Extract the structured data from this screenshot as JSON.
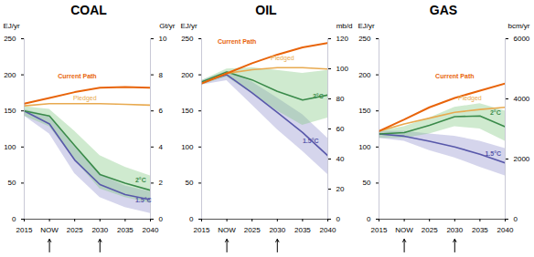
{
  "chart_data": [
    {
      "type": "line",
      "title": "COAL",
      "x": [
        2015,
        2020,
        2025,
        2030,
        2035,
        2040
      ],
      "xlim": [
        2015,
        2040
      ],
      "xticks": [
        2015,
        {
          "value": 2020,
          "label": "NOW"
        },
        2025,
        2030,
        2035,
        2040
      ],
      "ylabel": "EJ/yr",
      "ylim": [
        0,
        250
      ],
      "yticks": [
        0,
        50,
        100,
        150,
        200,
        250
      ],
      "y2label": "Gt/yr",
      "y2lim": [
        0,
        10
      ],
      "y2ticks": [
        0,
        2,
        4,
        6,
        8,
        10
      ],
      "grid": false,
      "series": [
        {
          "name": "Current Path",
          "color": "#e8640a",
          "values": [
            160,
            168,
            176,
            182,
            183,
            182
          ]
        },
        {
          "name": "Pledged",
          "color": "#e8aa50",
          "values": [
            157,
            160,
            160,
            160,
            159,
            158
          ]
        },
        {
          "name": "2°C",
          "color": "#3a8a4a",
          "values": [
            150,
            143,
            102,
            62,
            50,
            40
          ],
          "lo": [
            143,
            128,
            82,
            42,
            30,
            22
          ],
          "hi": [
            156,
            152,
            122,
            88,
            72,
            60
          ],
          "band_color": "#80c880"
        },
        {
          "name": "1.5°C",
          "color": "#5858aa",
          "values": [
            150,
            132,
            82,
            48,
            34,
            27
          ],
          "lo": [
            143,
            118,
            63,
            30,
            16,
            8
          ],
          "hi": [
            152,
            143,
            100,
            62,
            46,
            38
          ],
          "band_color": "#9090cc"
        }
      ],
      "annotations": [
        {
          "text": "Current Path",
          "x": 2025.5,
          "y": 195,
          "color": "#e8640a"
        },
        {
          "text": "Pledged",
          "x": 2027,
          "y": 165,
          "color": "#e8aa50"
        },
        {
          "text": "2°C",
          "x": 2037,
          "y": 54,
          "color": "#3a8a4a"
        },
        {
          "text": "1.5°C",
          "x": 2037,
          "y": 26,
          "color": "#5858aa"
        }
      ],
      "arrows_x": [
        2020,
        2030
      ]
    },
    {
      "type": "line",
      "title": "OIL",
      "x": [
        2015,
        2020,
        2025,
        2030,
        2035,
        2040
      ],
      "xlim": [
        2015,
        2040
      ],
      "xticks": [
        2015,
        {
          "value": 2020,
          "label": "NOW"
        },
        2025,
        2030,
        2035,
        2040
      ],
      "ylabel": "EJ/yr",
      "ylim": [
        0,
        250
      ],
      "yticks": [
        0,
        50,
        100,
        150,
        200,
        250
      ],
      "y2label": "mb/d",
      "y2lim": [
        0,
        120
      ],
      "y2ticks": [
        0,
        20,
        40,
        60,
        80,
        100,
        120
      ],
      "grid": false,
      "series": [
        {
          "name": "Current Path",
          "color": "#e8640a",
          "values": [
            188,
            202,
            216,
            228,
            238,
            244
          ]
        },
        {
          "name": "Pledged",
          "color": "#e8aa50",
          "values": [
            188,
            202,
            207,
            210,
            210,
            208
          ]
        },
        {
          "name": "2°C",
          "color": "#3a8a4a",
          "values": [
            190,
            204,
            193,
            177,
            165,
            172
          ],
          "lo": [
            186,
            197,
            174,
            150,
            130,
            140
          ],
          "hi": [
            192,
            208,
            210,
            206,
            202,
            206
          ],
          "band_color": "#80c880"
        },
        {
          "name": "1.5°C",
          "color": "#5858aa",
          "values": [
            190,
            200,
            175,
            148,
            120,
            88
          ],
          "lo": [
            186,
            192,
            158,
            124,
            94,
            62
          ],
          "hi": [
            192,
            205,
            190,
            168,
            145,
            112
          ],
          "band_color": "#9090cc"
        }
      ],
      "annotations": [
        {
          "text": "Current Path",
          "x": 2022,
          "y": 243,
          "color": "#e8640a"
        },
        {
          "text": "Pledged",
          "x": 2031,
          "y": 220,
          "color": "#e8aa50"
        },
        {
          "text": "2°C",
          "x": 2037,
          "y": 170,
          "color": "#3a8a4a"
        },
        {
          "text": "1.5°C",
          "x": 2035,
          "y": 108,
          "color": "#5858aa"
        }
      ],
      "arrows_x": [
        2020,
        2030
      ]
    },
    {
      "type": "line",
      "title": "GAS",
      "x": [
        2015,
        2020,
        2025,
        2030,
        2035,
        2040
      ],
      "xlim": [
        2015,
        2040
      ],
      "xticks": [
        2015,
        {
          "value": 2020,
          "label": "NOW"
        },
        2025,
        2030,
        2035,
        2040
      ],
      "ylabel": "EJ/yr",
      "ylim": [
        0,
        250
      ],
      "yticks": [
        0,
        50,
        100,
        150,
        200,
        250
      ],
      "y2label": "bcm/yr",
      "y2lim": [
        0,
        6000
      ],
      "y2ticks": [
        0,
        2000,
        4000,
        6000
      ],
      "grid": false,
      "series": [
        {
          "name": "Current Path",
          "color": "#e8640a",
          "values": [
            122,
            138,
            155,
            168,
            178,
            188
          ]
        },
        {
          "name": "Pledged",
          "color": "#e8aa50",
          "values": [
            122,
            132,
            140,
            148,
            152,
            155
          ]
        },
        {
          "name": "2°C",
          "color": "#3a8a4a",
          "values": [
            118,
            120,
            130,
            142,
            143,
            128
          ],
          "lo": [
            112,
            112,
            118,
            128,
            125,
            108
          ],
          "hi": [
            122,
            128,
            140,
            155,
            160,
            150
          ],
          "band_color": "#80c880"
        },
        {
          "name": "1.5°C",
          "color": "#5858aa",
          "values": [
            118,
            115,
            108,
            100,
            90,
            78
          ],
          "lo": [
            112,
            108,
            95,
            85,
            72,
            60
          ],
          "hi": [
            122,
            122,
            118,
            115,
            108,
            98
          ],
          "band_color": "#9090cc"
        }
      ],
      "annotations": [
        {
          "text": "Current Path",
          "x": 2030,
          "y": 195,
          "color": "#e8640a"
        },
        {
          "text": "Pledged",
          "x": 2033,
          "y": 165,
          "color": "#e8aa50"
        },
        {
          "text": "2°C",
          "x": 2037,
          "y": 148,
          "color": "#3a8a4a"
        },
        {
          "text": "1.5°C",
          "x": 2036,
          "y": 90,
          "color": "#5858aa"
        }
      ],
      "arrows_x": [
        2020,
        2030
      ]
    }
  ]
}
